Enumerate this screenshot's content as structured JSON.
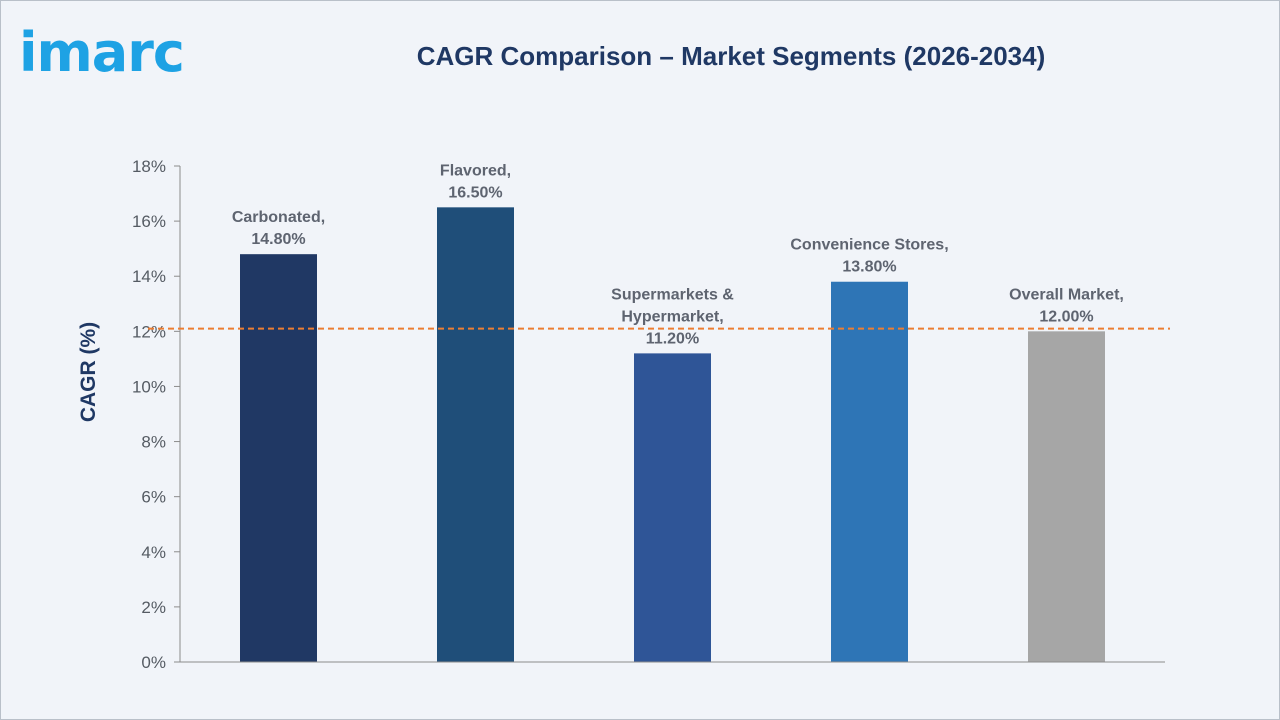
{
  "logo": {
    "text": "imarc"
  },
  "chart_data": {
    "type": "bar",
    "title": "CAGR Comparison – Market Segments (2026-2034)",
    "xlabel": "",
    "ylabel": "CAGR (%)",
    "ylim": [
      0,
      18
    ],
    "yticks": [
      0,
      2,
      4,
      6,
      8,
      10,
      12,
      14,
      16,
      18
    ],
    "ytick_labels": [
      "0%",
      "2%",
      "4%",
      "6%",
      "8%",
      "10%",
      "12%",
      "14%",
      "16%",
      "18%"
    ],
    "categories": [
      "Carbonated",
      "Flavored",
      "Supermarkets & Hypermarket",
      "Convenience Stores",
      "Overall Market"
    ],
    "values": [
      14.8,
      16.5,
      11.2,
      13.8,
      12.0
    ],
    "data_labels": [
      [
        "Carbonated,",
        "14.80%"
      ],
      [
        "Flavored,",
        "16.50%"
      ],
      [
        "Supermarkets &",
        "Hypermarket,",
        "11.20%"
      ],
      [
        "Convenience Stores,",
        "13.80%"
      ],
      [
        "Overall Market,",
        "12.00%"
      ]
    ],
    "colors": [
      "#203864",
      "#1f4e79",
      "#2f5597",
      "#2e75b6",
      "#a6a6a6"
    ],
    "reference_line": {
      "value": 12.1,
      "style": "dashed",
      "color": "#ed7d31"
    },
    "grid": false,
    "legend": "none"
  }
}
